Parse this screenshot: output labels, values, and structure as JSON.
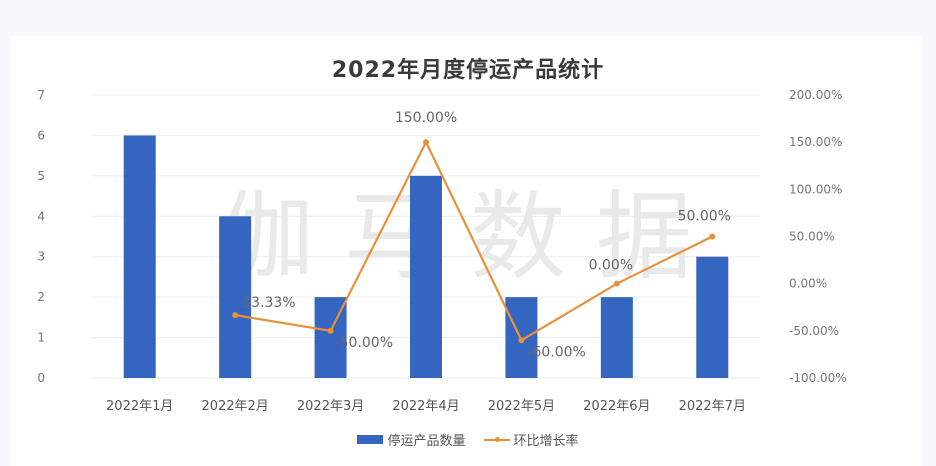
{
  "title": "2022年月度停运产品统计",
  "watermark": "伽马数据",
  "colors": {
    "bar": "#3465c1",
    "line": "#e8913a",
    "background": "#ffffff",
    "grid": "#eeeeee"
  },
  "legend": [
    {
      "label": "停运产品数量",
      "type": "bar"
    },
    {
      "label": "环比增长率",
      "type": "line"
    }
  ],
  "chart_data": {
    "type": "bar+line",
    "title": "2022年月度停运产品统计",
    "categories": [
      "2022年1月",
      "2022年2月",
      "2022年3月",
      "2022年4月",
      "2022年5月",
      "2022年6月",
      "2022年7月"
    ],
    "series": [
      {
        "name": "停运产品数量",
        "type": "bar",
        "axis": "left",
        "values": [
          6,
          4,
          2,
          5,
          2,
          2,
          3
        ]
      },
      {
        "name": "环比增长率",
        "type": "line",
        "axis": "right",
        "values": [
          null,
          -33.33,
          -50.0,
          150.0,
          -60.0,
          0.0,
          50.0
        ],
        "labels": [
          "",
          "-33.33%",
          "-50.00%",
          "150.00%",
          "-60.00%",
          "0.00%",
          "50.00%"
        ]
      }
    ],
    "left_axis": {
      "ylim": [
        0,
        7
      ],
      "ticks": [
        "0",
        "1",
        "2",
        "3",
        "4",
        "5",
        "6",
        "7"
      ]
    },
    "right_axis": {
      "ylim": [
        -100,
        200
      ],
      "ticks": [
        "-100.00%",
        "-50.00%",
        "0.00%",
        "50.00%",
        "100.00%",
        "150.00%",
        "200.00%"
      ]
    },
    "grid": true,
    "legend_position": "bottom"
  }
}
